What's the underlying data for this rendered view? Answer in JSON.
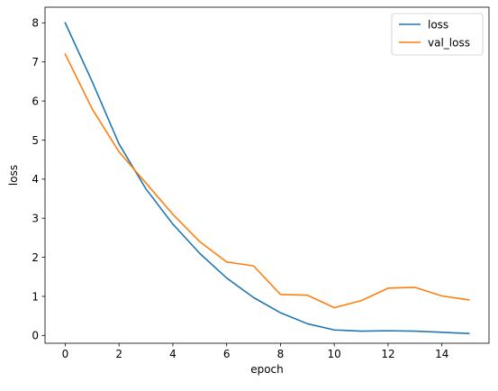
{
  "chart_data": {
    "type": "line",
    "xlabel": "epoch",
    "ylabel": "loss",
    "x": [
      0,
      1,
      2,
      3,
      4,
      5,
      6,
      7,
      8,
      9,
      10,
      11,
      12,
      13,
      14,
      15
    ],
    "xlim": [
      -0.75,
      15.75
    ],
    "ylim": [
      -0.2,
      8.4
    ],
    "xticks": [
      0,
      2,
      4,
      6,
      8,
      10,
      12,
      14
    ],
    "yticks": [
      0,
      1,
      2,
      3,
      4,
      5,
      6,
      7,
      8
    ],
    "grid": false,
    "legend_position": "top-right",
    "series": [
      {
        "name": "loss",
        "color": "#1f77b4",
        "values": [
          8.0,
          6.5,
          4.9,
          3.75,
          2.85,
          2.1,
          1.47,
          0.97,
          0.58,
          0.3,
          0.14,
          0.11,
          0.12,
          0.11,
          0.08,
          0.05
        ]
      },
      {
        "name": "val_loss",
        "color": "#ff7f0e",
        "values": [
          7.2,
          5.8,
          4.7,
          3.9,
          3.1,
          2.4,
          1.88,
          1.78,
          1.05,
          1.03,
          0.71,
          0.89,
          1.21,
          1.23,
          1.01,
          0.91
        ]
      }
    ]
  }
}
